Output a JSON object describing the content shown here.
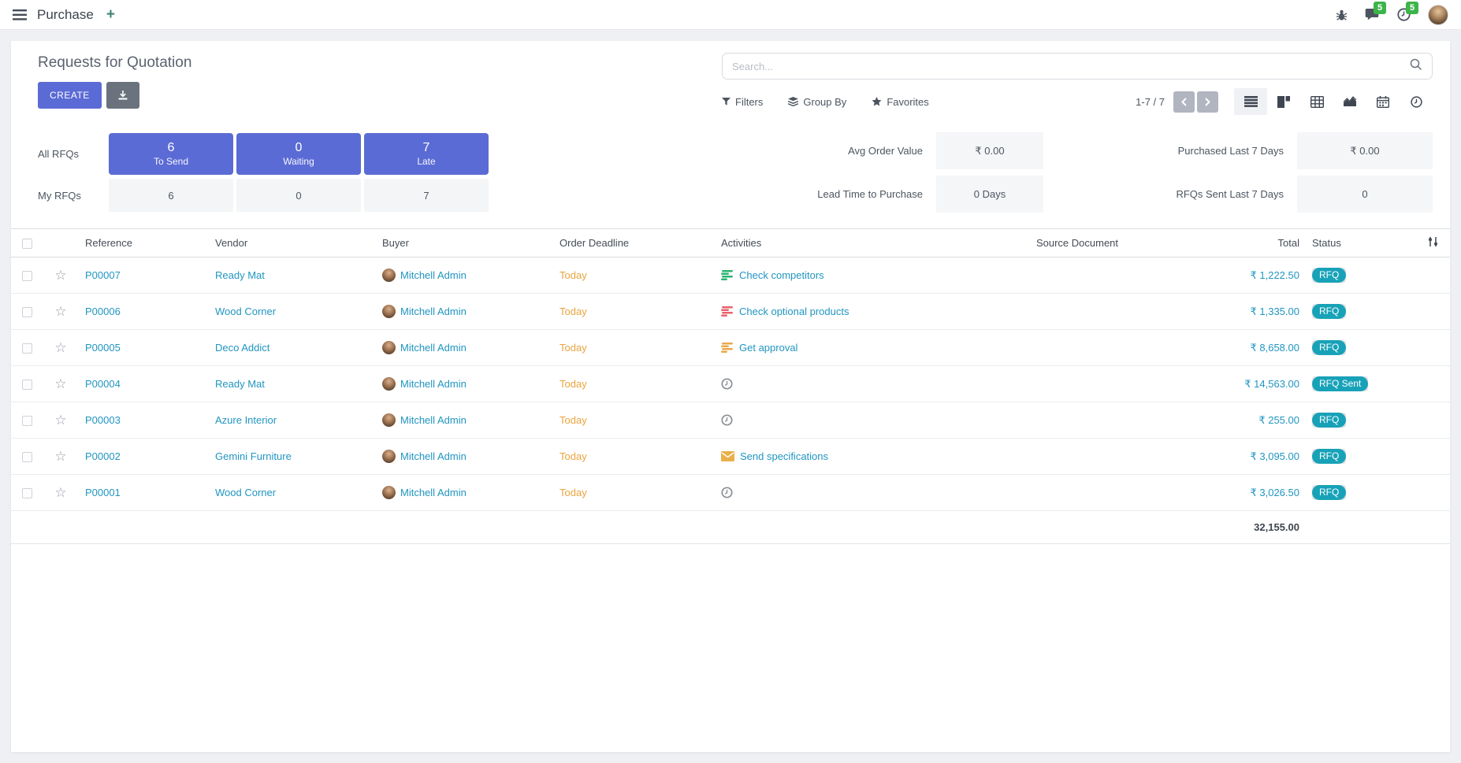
{
  "topbar": {
    "app_name": "Purchase",
    "new_tab_label": "+",
    "messages_badge": "5",
    "activities_badge": "5"
  },
  "control_panel": {
    "title": "Requests for Quotation",
    "create_label": "CREATE",
    "search": {
      "placeholder": "Search...",
      "value": ""
    },
    "filters_label": "Filters",
    "group_by_label": "Group By",
    "favorites_label": "Favorites",
    "pager": "1-7 / 7",
    "views": {
      "active": "list",
      "options": [
        "list",
        "kanban",
        "pivot",
        "graph",
        "calendar",
        "activity"
      ]
    }
  },
  "dashboard": {
    "rows": [
      {
        "label": "All RFQs"
      },
      {
        "label": "My RFQs"
      }
    ],
    "stats": [
      {
        "count": "6",
        "label": "To Send",
        "my_count": "6"
      },
      {
        "count": "0",
        "label": "Waiting",
        "my_count": "0"
      },
      {
        "count": "7",
        "label": "Late",
        "my_count": "7"
      }
    ],
    "kpis": [
      {
        "label": "Avg Order Value",
        "value": "₹ 0.00"
      },
      {
        "label": "Purchased Last 7 Days",
        "value": "₹ 0.00"
      },
      {
        "label": "Lead Time to Purchase",
        "value": "0 Days"
      },
      {
        "label": "RFQs Sent Last 7 Days",
        "value": "0"
      }
    ]
  },
  "table": {
    "columns": [
      "Reference",
      "Vendor",
      "Buyer",
      "Order Deadline",
      "Activities",
      "Source Document",
      "Total",
      "Status"
    ],
    "rows": [
      {
        "reference": "P00007",
        "vendor": "Ready Mat",
        "buyer": "Mitchell Admin",
        "deadline": "Today",
        "activity": {
          "icon": "list",
          "color": "#29b573",
          "label": "Check competitors"
        },
        "total": "₹ 1,222.50",
        "status": "RFQ"
      },
      {
        "reference": "P00006",
        "vendor": "Wood Corner",
        "buyer": "Mitchell Admin",
        "deadline": "Today",
        "activity": {
          "icon": "list",
          "color": "#e8636b",
          "label": "Check optional products"
        },
        "total": "₹ 1,335.00",
        "status": "RFQ"
      },
      {
        "reference": "P00005",
        "vendor": "Deco Addict",
        "buyer": "Mitchell Admin",
        "deadline": "Today",
        "activity": {
          "icon": "list",
          "color": "#e9a94c",
          "label": "Get approval"
        },
        "total": "₹ 8,658.00",
        "status": "RFQ"
      },
      {
        "reference": "P00004",
        "vendor": "Ready Mat",
        "buyer": "Mitchell Admin",
        "deadline": "Today",
        "activity": {
          "icon": "clock",
          "color": "#8a9097",
          "label": ""
        },
        "total": "₹ 14,563.00",
        "status": "RFQ Sent"
      },
      {
        "reference": "P00003",
        "vendor": "Azure Interior",
        "buyer": "Mitchell Admin",
        "deadline": "Today",
        "activity": {
          "icon": "clock",
          "color": "#8a9097",
          "label": ""
        },
        "total": "₹ 255.00",
        "status": "RFQ"
      },
      {
        "reference": "P00002",
        "vendor": "Gemini Furniture",
        "buyer": "Mitchell Admin",
        "deadline": "Today",
        "activity": {
          "icon": "envelope",
          "color": "#e9b04a",
          "label": "Send specifications"
        },
        "total": "₹ 3,095.00",
        "status": "RFQ"
      },
      {
        "reference": "P00001",
        "vendor": "Wood Corner",
        "buyer": "Mitchell Admin",
        "deadline": "Today",
        "activity": {
          "icon": "clock",
          "color": "#8a9097",
          "label": ""
        },
        "total": "₹ 3,026.50",
        "status": "RFQ"
      }
    ],
    "footer_total": "32,155.00"
  },
  "colors": {
    "primary": "#5b6bd5",
    "link": "#2196c1",
    "badge_green": "#3cb44a",
    "status_teal": "#18a2b8",
    "deadline_orange": "#e9a43f"
  }
}
